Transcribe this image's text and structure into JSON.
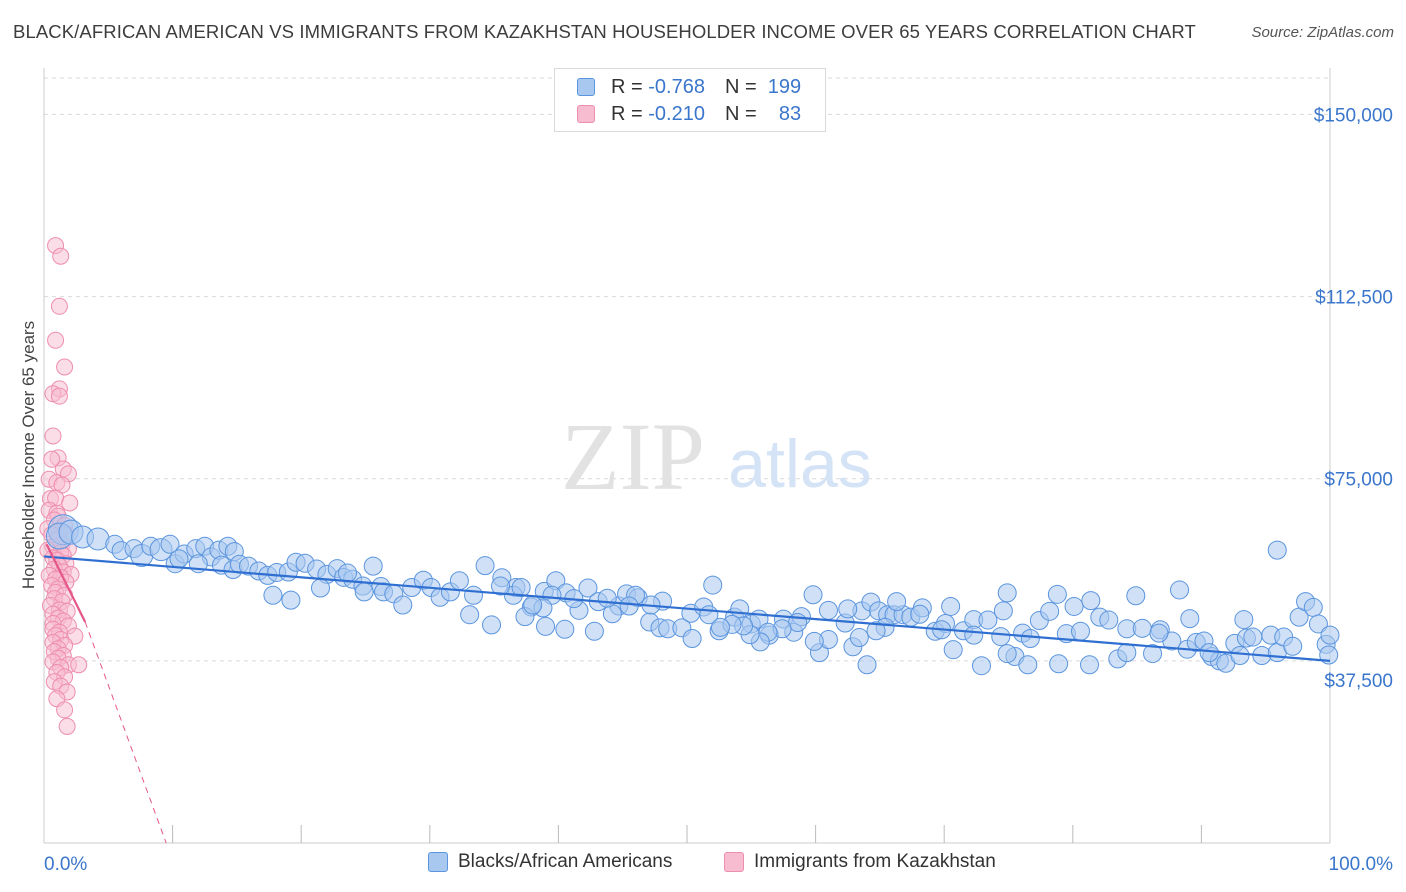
{
  "title": "BLACK/AFRICAN AMERICAN VS IMMIGRANTS FROM KAZAKHSTAN HOUSEHOLDER INCOME OVER 65 YEARS CORRELATION CHART",
  "source": "Source: ZipAtlas.com",
  "watermark": {
    "zip": "ZIP",
    "atlas": "atlas"
  },
  "legend_top": [
    {
      "r_label": "R =",
      "r_value": "-0.768",
      "n_label": "N =",
      "n_value": "199"
    },
    {
      "r_label": "R =",
      "r_value": "-0.210",
      "n_label": "N =",
      "n_value": "83"
    }
  ],
  "colors": {
    "blue_fill": "#a9c8f0",
    "blue_edge": "#5b95de",
    "blue_line": "#2f6fd1",
    "pink_fill": "#f7bcd0",
    "pink_edge": "#ee8eae",
    "pink_line": "#e5568a",
    "axis_label": "#3a76cc",
    "grid": "#d9d9d9"
  },
  "chart_data": {
    "type": "scatter",
    "title": "BLACK/AFRICAN AMERICAN VS IMMIGRANTS FROM KAZAKHSTAN HOUSEHOLDER INCOME OVER 65 YEARS CORRELATION CHART",
    "xlabel": "",
    "ylabel": "Householder Income Over 65 years",
    "xlim": [
      0,
      100
    ],
    "ylim": [
      0,
      157500
    ],
    "x_tick_labels": [
      "0.0%",
      "100.0%"
    ],
    "y_ticks": [
      37500,
      75000,
      112500,
      150000
    ],
    "y_tick_labels": [
      "$37,500",
      "$75,000",
      "$112,500",
      "$150,000"
    ],
    "grid": "horizontal dashed",
    "legend_position": "top-center",
    "series": [
      {
        "name": "Blacks/African Americans",
        "color": "#a9c8f0",
        "r": -0.768,
        "n": 199,
        "trend": {
          "x": [
            0,
            100
          ],
          "y": [
            59000,
            37500
          ]
        },
        "points": [
          [
            1.5,
            64500
          ],
          [
            1.2,
            63200
          ],
          [
            2.1,
            64000
          ],
          [
            3,
            63000
          ],
          [
            4.2,
            62600
          ],
          [
            5.5,
            61500
          ],
          [
            6,
            60200
          ],
          [
            7,
            60600
          ],
          [
            7.6,
            59200
          ],
          [
            8.3,
            61100
          ],
          [
            9.1,
            60400
          ],
          [
            9.8,
            61500
          ],
          [
            10.2,
            57500
          ],
          [
            10.9,
            59500
          ],
          [
            11.8,
            60600
          ],
          [
            12.5,
            61100
          ],
          [
            13,
            58900
          ],
          [
            13.6,
            60300
          ],
          [
            14.3,
            61100
          ],
          [
            14.8,
            60000
          ],
          [
            10.5,
            58500
          ],
          [
            12,
            57500
          ],
          [
            13.8,
            57200
          ],
          [
            14.7,
            56300
          ],
          [
            15.2,
            57400
          ],
          [
            15.9,
            57000
          ],
          [
            16.7,
            56000
          ],
          [
            17.4,
            55100
          ],
          [
            18.1,
            55700
          ],
          [
            19,
            55800
          ],
          [
            19.6,
            57800
          ],
          [
            20.3,
            57600
          ],
          [
            21.2,
            56400
          ],
          [
            22,
            55300
          ],
          [
            22.8,
            56500
          ],
          [
            23.3,
            54700
          ],
          [
            24,
            54300
          ],
          [
            24.8,
            52900
          ],
          [
            25.6,
            57000
          ],
          [
            26.2,
            52800
          ],
          [
            17.8,
            51000
          ],
          [
            19.2,
            50000
          ],
          [
            21.5,
            52500
          ],
          [
            23.6,
            55600
          ],
          [
            24.9,
            51700
          ],
          [
            26.4,
            51700
          ],
          [
            27.2,
            51300
          ],
          [
            27.9,
            49000
          ],
          [
            28.6,
            52600
          ],
          [
            29.5,
            54100
          ],
          [
            30.1,
            52600
          ],
          [
            30.8,
            50600
          ],
          [
            31.6,
            51700
          ],
          [
            32.3,
            54000
          ],
          [
            33.4,
            51000
          ],
          [
            34.3,
            57100
          ],
          [
            35.6,
            54600
          ],
          [
            36.7,
            52600
          ],
          [
            37.9,
            48600
          ],
          [
            38.9,
            51800
          ],
          [
            33.1,
            47000
          ],
          [
            34.8,
            44900
          ],
          [
            36.5,
            51000
          ],
          [
            37.4,
            46600
          ],
          [
            39,
            44600
          ],
          [
            39.8,
            54000
          ],
          [
            40.6,
            51500
          ],
          [
            41.6,
            47900
          ],
          [
            42.3,
            52500
          ],
          [
            43.1,
            49700
          ],
          [
            44.7,
            48800
          ],
          [
            45.3,
            51300
          ],
          [
            46.2,
            50500
          ],
          [
            47.1,
            45500
          ],
          [
            47.9,
            44300
          ],
          [
            48.5,
            44100
          ],
          [
            49.6,
            44300
          ],
          [
            50.3,
            47300
          ],
          [
            51.3,
            48600
          ],
          [
            52,
            53100
          ],
          [
            52.5,
            43700
          ],
          [
            53.7,
            46500
          ],
          [
            54.1,
            48200
          ],
          [
            55,
            45100
          ],
          [
            55.6,
            46100
          ],
          [
            56.4,
            42800
          ],
          [
            57.5,
            46100
          ],
          [
            58.3,
            43400
          ],
          [
            58.9,
            46600
          ],
          [
            59.8,
            51100
          ],
          [
            60.3,
            39200
          ],
          [
            61,
            41900
          ],
          [
            62.3,
            45300
          ],
          [
            62.9,
            40400
          ],
          [
            63.6,
            47800
          ],
          [
            64.3,
            49600
          ],
          [
            64.9,
            47800
          ],
          [
            65.6,
            47000
          ],
          [
            66.1,
            47000
          ],
          [
            66.8,
            47000
          ],
          [
            64,
            36700
          ],
          [
            67.4,
            46500
          ],
          [
            68.3,
            48400
          ],
          [
            69.3,
            43600
          ],
          [
            70.1,
            45200
          ],
          [
            70.7,
            39800
          ],
          [
            71.5,
            43700
          ],
          [
            72.3,
            46000
          ],
          [
            72.9,
            36500
          ],
          [
            73.4,
            45900
          ],
          [
            74.4,
            42500
          ],
          [
            74.9,
            51500
          ],
          [
            75.5,
            38400
          ],
          [
            76.1,
            43200
          ],
          [
            76.7,
            42100
          ],
          [
            77.4,
            45800
          ],
          [
            78.2,
            47700
          ],
          [
            78.8,
            51200
          ],
          [
            79.5,
            43100
          ],
          [
            80.1,
            48700
          ],
          [
            80.6,
            43600
          ],
          [
            81.4,
            49900
          ],
          [
            82.1,
            46500
          ],
          [
            82.8,
            45900
          ],
          [
            83.5,
            37900
          ],
          [
            84.2,
            44100
          ],
          [
            84.9,
            50900
          ],
          [
            85.4,
            44200
          ],
          [
            86.2,
            39000
          ],
          [
            86.8,
            43900
          ],
          [
            87.7,
            41600
          ],
          [
            88.3,
            52100
          ],
          [
            88.9,
            39900
          ],
          [
            89.6,
            41300
          ],
          [
            90.2,
            41600
          ],
          [
            90.8,
            38400
          ],
          [
            91.4,
            37500
          ],
          [
            91.9,
            37000
          ],
          [
            92.6,
            41100
          ],
          [
            93,
            38600
          ],
          [
            93.5,
            42200
          ],
          [
            94,
            42400
          ],
          [
            94.7,
            38600
          ],
          [
            95.4,
            42800
          ],
          [
            95.9,
            39200
          ],
          [
            96.4,
            42400
          ],
          [
            97.1,
            40500
          ],
          [
            97.6,
            46500
          ],
          [
            98.1,
            49700
          ],
          [
            98.7,
            48500
          ],
          [
            99.1,
            45100
          ],
          [
            99.7,
            40900
          ],
          [
            99.9,
            38700
          ],
          [
            100,
            42800
          ],
          [
            95.9,
            60300
          ],
          [
            93.3,
            46000
          ],
          [
            90.6,
            39200
          ],
          [
            89.1,
            46200
          ],
          [
            86.7,
            43200
          ],
          [
            84.2,
            39200
          ],
          [
            81.3,
            36700
          ],
          [
            78.9,
            36900
          ],
          [
            76.5,
            36700
          ],
          [
            74.9,
            39000
          ],
          [
            74.6,
            47800
          ],
          [
            72.3,
            42800
          ],
          [
            70.5,
            48700
          ],
          [
            69.8,
            43900
          ],
          [
            68.1,
            47100
          ],
          [
            66.3,
            49700
          ],
          [
            65.4,
            44400
          ],
          [
            64.7,
            43700
          ],
          [
            63.4,
            42300
          ],
          [
            62.5,
            48200
          ],
          [
            61,
            47900
          ],
          [
            59.9,
            41500
          ],
          [
            58.6,
            45400
          ],
          [
            57.4,
            44100
          ],
          [
            56.3,
            43400
          ],
          [
            55.7,
            41400
          ],
          [
            54.9,
            42900
          ],
          [
            54.4,
            44700
          ],
          [
            53.5,
            45000
          ],
          [
            52.6,
            44400
          ],
          [
            51.7,
            47000
          ],
          [
            50.4,
            42100
          ],
          [
            48.1,
            49800
          ],
          [
            47.2,
            49000
          ],
          [
            46,
            51000
          ],
          [
            45.5,
            48800
          ],
          [
            44.2,
            47200
          ],
          [
            43.8,
            50400
          ],
          [
            42.8,
            43600
          ],
          [
            41.2,
            50300
          ],
          [
            40.5,
            44000
          ],
          [
            39.5,
            51000
          ],
          [
            38.8,
            48400
          ],
          [
            38,
            49000
          ],
          [
            37.1,
            52600
          ],
          [
            35.5,
            52900
          ]
        ]
      },
      {
        "name": "Immigrants from Kazakhstan",
        "color": "#f7bcd0",
        "r": -0.21,
        "n": 83,
        "trend": {
          "x": [
            0.2,
            3.2
          ],
          "y": [
            61500,
            45500
          ]
        },
        "trend_extended": {
          "x": [
            3.2,
            9.5
          ],
          "y": [
            45500,
            0
          ]
        },
        "points": [
          [
            0.9,
            123000
          ],
          [
            1.3,
            120800
          ],
          [
            1.2,
            110500
          ],
          [
            0.9,
            103500
          ],
          [
            1.6,
            98000
          ],
          [
            1.2,
            93500
          ],
          [
            0.7,
            92500
          ],
          [
            1.2,
            92000
          ],
          [
            0.7,
            83800
          ],
          [
            1.1,
            79300
          ],
          [
            1.5,
            77000
          ],
          [
            0.6,
            79000
          ],
          [
            1.9,
            76000
          ],
          [
            0.4,
            74900
          ],
          [
            1,
            74200
          ],
          [
            1.4,
            73700
          ],
          [
            0.5,
            70900
          ],
          [
            0.9,
            71000
          ],
          [
            2,
            70000
          ],
          [
            0.4,
            68500
          ],
          [
            1,
            67900
          ],
          [
            1.1,
            67300
          ],
          [
            0.8,
            66500
          ],
          [
            1.6,
            65400
          ],
          [
            0.3,
            64700
          ],
          [
            1.2,
            64000
          ],
          [
            1.7,
            63700
          ],
          [
            0.6,
            63500
          ],
          [
            1.1,
            62600
          ],
          [
            1.4,
            61500
          ],
          [
            0.7,
            61000
          ],
          [
            1.9,
            60600
          ],
          [
            0.3,
            60300
          ],
          [
            1.3,
            59800
          ],
          [
            1.5,
            59200
          ],
          [
            0.7,
            58700
          ],
          [
            1,
            58200
          ],
          [
            1.7,
            57500
          ],
          [
            1.2,
            57000
          ],
          [
            0.8,
            56400
          ],
          [
            1.5,
            55800
          ],
          [
            0.4,
            55100
          ],
          [
            2.1,
            55300
          ],
          [
            1.3,
            54700
          ],
          [
            0.9,
            54300
          ],
          [
            1.7,
            53700
          ],
          [
            0.6,
            53000
          ],
          [
            1.1,
            52300
          ],
          [
            0.9,
            51600
          ],
          [
            1.6,
            51000
          ],
          [
            0.8,
            50300
          ],
          [
            1.4,
            49700
          ],
          [
            0.5,
            48900
          ],
          [
            1.2,
            48000
          ],
          [
            1.8,
            47700
          ],
          [
            0.7,
            47100
          ],
          [
            1.1,
            46300
          ],
          [
            1.5,
            45700
          ],
          [
            0.7,
            45200
          ],
          [
            1.9,
            44700
          ],
          [
            0.7,
            44000
          ],
          [
            1.2,
            43400
          ],
          [
            0.9,
            42700
          ],
          [
            2.4,
            42600
          ],
          [
            1.3,
            41900
          ],
          [
            0.7,
            41300
          ],
          [
            1.6,
            40700
          ],
          [
            1.1,
            40000
          ],
          [
            0.8,
            39400
          ],
          [
            1.5,
            38600
          ],
          [
            1.1,
            38000
          ],
          [
            0.7,
            37300
          ],
          [
            1.9,
            36700
          ],
          [
            2.7,
            36700
          ],
          [
            1.3,
            36100
          ],
          [
            1,
            35100
          ],
          [
            1.6,
            34200
          ],
          [
            0.8,
            33200
          ],
          [
            1.3,
            32300
          ],
          [
            1.8,
            31100
          ],
          [
            1,
            29700
          ],
          [
            1.6,
            27400
          ],
          [
            1.8,
            24000
          ]
        ]
      }
    ]
  },
  "bottom_legend": [
    {
      "label": "Blacks/African Americans"
    },
    {
      "label": "Immigrants from Kazakhstan"
    }
  ]
}
